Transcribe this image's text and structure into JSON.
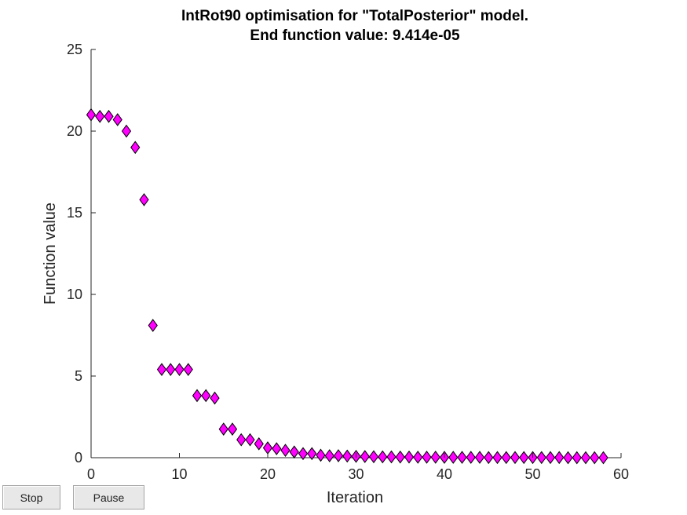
{
  "chart_data": {
    "type": "scatter",
    "title": "IntRot90 optimisation for \"TotalPosterior\" model.",
    "subtitle": "End function value: 9.414e-05",
    "xlabel": "Iteration",
    "ylabel": "Function value",
    "xlim": [
      0,
      60
    ],
    "ylim": [
      0,
      25
    ],
    "xticks": [
      0,
      10,
      20,
      30,
      40,
      50,
      60
    ],
    "yticks": [
      0,
      5,
      10,
      15,
      20,
      25
    ],
    "marker": "diamond",
    "marker_color": "#ff00ff",
    "marker_edge": "#000000",
    "grid": false,
    "x": [
      0,
      1,
      2,
      3,
      4,
      5,
      6,
      7,
      8,
      9,
      10,
      11,
      12,
      13,
      14,
      15,
      16,
      17,
      18,
      19,
      20,
      21,
      22,
      23,
      24,
      25,
      26,
      27,
      28,
      29,
      30,
      31,
      32,
      33,
      34,
      35,
      36,
      37,
      38,
      39,
      40,
      41,
      42,
      43,
      44,
      45,
      46,
      47,
      48,
      49,
      50,
      51,
      52,
      53,
      54,
      55,
      56,
      57,
      58
    ],
    "y": [
      21.0,
      20.9,
      20.9,
      20.7,
      20.0,
      19.0,
      15.8,
      8.1,
      5.4,
      5.4,
      5.4,
      5.4,
      3.8,
      3.8,
      3.65,
      1.75,
      1.75,
      1.1,
      1.1,
      0.85,
      0.6,
      0.55,
      0.45,
      0.35,
      0.25,
      0.25,
      0.15,
      0.12,
      0.12,
      0.1,
      0.08,
      0.07,
      0.06,
      0.05,
      0.05,
      0.04,
      0.04,
      0.03,
      0.03,
      0.03,
      0.02,
      0.02,
      0.02,
      0.02,
      0.02,
      0.01,
      0.01,
      0.01,
      0.01,
      0.01,
      0.01,
      0.01,
      0.01,
      0.01,
      0.0,
      0.0,
      0.0,
      0.0,
      0.0
    ]
  },
  "controls": {
    "stop_label": "Stop",
    "pause_label": "Pause"
  }
}
